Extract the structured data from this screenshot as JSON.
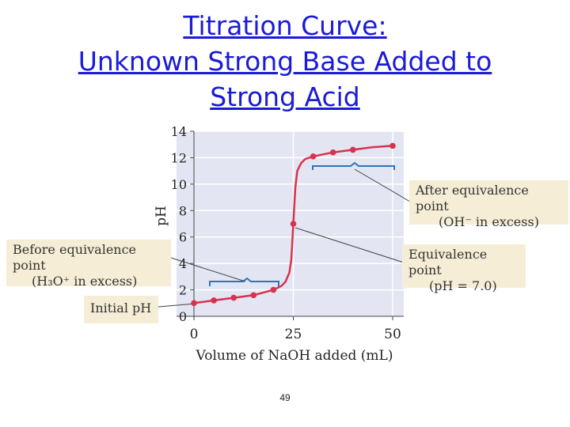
{
  "slide": {
    "title_lines": [
      "Titration Curve:",
      "Unknown Strong Base Added to",
      "Strong Acid"
    ],
    "page_number": "49"
  },
  "annotations": {
    "after_eq": [
      "After equivalence point",
      "(OH⁻ in excess)"
    ],
    "eq_point": [
      "Equivalence point",
      "(pH = 7.0)"
    ],
    "before_eq": [
      "Before equivalence point",
      "(H₃O⁺ in excess)"
    ],
    "initial_ph": "Initial pH"
  },
  "chart_data": {
    "type": "line",
    "title": "",
    "xlabel": "Volume of NaOH added (mL)",
    "ylabel": "pH",
    "xlim": [
      0,
      50
    ],
    "ylim": [
      0,
      14
    ],
    "x_ticks": [
      0,
      25,
      50
    ],
    "y_ticks": [
      0,
      2,
      4,
      6,
      8,
      10,
      12,
      14
    ],
    "grid": true,
    "colors": {
      "curve": "#d8324e",
      "plot_bg": "#e3e6f2",
      "grid": "#ffffff",
      "brace": "#2f74b4",
      "box_bg": "#f6edd6"
    },
    "series": [
      {
        "points": [
          [
            0,
            1.0
          ],
          [
            5,
            1.2
          ],
          [
            10,
            1.4
          ],
          [
            15,
            1.6
          ],
          [
            20,
            2.0
          ],
          [
            22,
            2.3
          ],
          [
            23,
            2.6
          ],
          [
            24,
            3.3
          ],
          [
            24.5,
            4.3
          ],
          [
            25,
            7.0
          ],
          [
            25.5,
            9.7
          ],
          [
            26,
            11.0
          ],
          [
            27,
            11.6
          ],
          [
            28,
            11.9
          ],
          [
            30,
            12.1
          ],
          [
            35,
            12.4
          ],
          [
            40,
            12.6
          ],
          [
            45,
            12.8
          ],
          [
            50,
            12.9
          ]
        ],
        "markers": [
          [
            0,
            1.0
          ],
          [
            5,
            1.2
          ],
          [
            10,
            1.4
          ],
          [
            15,
            1.6
          ],
          [
            20,
            2.0
          ],
          [
            25,
            7.0
          ],
          [
            30,
            12.1
          ],
          [
            35,
            12.4
          ],
          [
            40,
            12.6
          ],
          [
            50,
            12.9
          ]
        ]
      }
    ]
  }
}
